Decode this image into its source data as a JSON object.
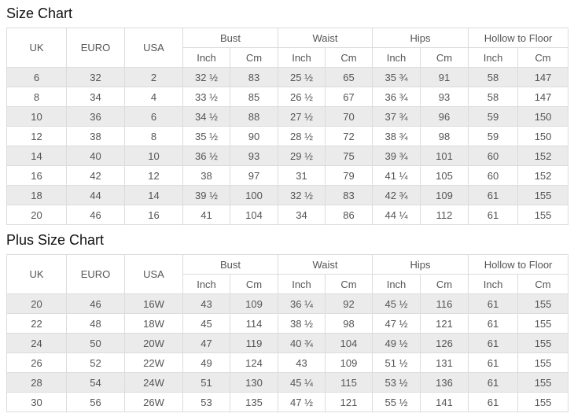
{
  "headers": {
    "uk": "UK",
    "euro": "EURO",
    "usa": "USA",
    "groups": [
      "Bust",
      "Waist",
      "Hips",
      "Hollow to Floor"
    ],
    "sub": {
      "inch": "Inch",
      "cm": "Cm"
    }
  },
  "colors": {
    "stripe_row": "#ebebeb",
    "border": "#dcdcdc",
    "text": "#555555",
    "title": "#111111",
    "background": "#ffffff"
  },
  "chart_data": [
    {
      "type": "table",
      "title": "Size Chart",
      "column_groups": [
        "UK",
        "EURO",
        "USA",
        "Bust",
        "Waist",
        "Hips",
        "Hollow to Floor"
      ],
      "columns": [
        "UK",
        "EURO",
        "USA",
        "Bust Inch",
        "Bust Cm",
        "Waist Inch",
        "Waist Cm",
        "Hips Inch",
        "Hips Cm",
        "Hollow to Floor Inch",
        "Hollow to Floor Cm"
      ],
      "rows": [
        [
          "6",
          "32",
          "2",
          "32 ½",
          "83",
          "25 ½",
          "65",
          "35 ¾",
          "91",
          "58",
          "147"
        ],
        [
          "8",
          "34",
          "4",
          "33 ½",
          "85",
          "26 ½",
          "67",
          "36 ¾",
          "93",
          "58",
          "147"
        ],
        [
          "10",
          "36",
          "6",
          "34 ½",
          "88",
          "27 ½",
          "70",
          "37 ¾",
          "96",
          "59",
          "150"
        ],
        [
          "12",
          "38",
          "8",
          "35 ½",
          "90",
          "28 ½",
          "72",
          "38 ¾",
          "98",
          "59",
          "150"
        ],
        [
          "14",
          "40",
          "10",
          "36 ½",
          "93",
          "29 ½",
          "75",
          "39 ¾",
          "101",
          "60",
          "152"
        ],
        [
          "16",
          "42",
          "12",
          "38",
          "97",
          "31",
          "79",
          "41 ¼",
          "105",
          "60",
          "152"
        ],
        [
          "18",
          "44",
          "14",
          "39 ½",
          "100",
          "32 ½",
          "83",
          "42 ¾",
          "109",
          "61",
          "155"
        ],
        [
          "20",
          "46",
          "16",
          "41",
          "104",
          "34",
          "86",
          "44 ¼",
          "112",
          "61",
          "155"
        ]
      ]
    },
    {
      "type": "table",
      "title": "Plus Size Chart",
      "column_groups": [
        "UK",
        "EURO",
        "USA",
        "Bust",
        "Waist",
        "Hips",
        "Hollow to Floor"
      ],
      "columns": [
        "UK",
        "EURO",
        "USA",
        "Bust Inch",
        "Bust Cm",
        "Waist Inch",
        "Waist Cm",
        "Hips Inch",
        "Hips Cm",
        "Hollow to Floor Inch",
        "Hollow to Floor Cm"
      ],
      "rows": [
        [
          "20",
          "46",
          "16W",
          "43",
          "109",
          "36 ¼",
          "92",
          "45 ½",
          "116",
          "61",
          "155"
        ],
        [
          "22",
          "48",
          "18W",
          "45",
          "114",
          "38 ½",
          "98",
          "47 ½",
          "121",
          "61",
          "155"
        ],
        [
          "24",
          "50",
          "20W",
          "47",
          "119",
          "40 ¾",
          "104",
          "49 ½",
          "126",
          "61",
          "155"
        ],
        [
          "26",
          "52",
          "22W",
          "49",
          "124",
          "43",
          "109",
          "51 ½",
          "131",
          "61",
          "155"
        ],
        [
          "28",
          "54",
          "24W",
          "51",
          "130",
          "45 ¼",
          "115",
          "53 ½",
          "136",
          "61",
          "155"
        ],
        [
          "30",
          "56",
          "26W",
          "53",
          "135",
          "47 ½",
          "121",
          "55 ½",
          "141",
          "61",
          "155"
        ]
      ]
    }
  ]
}
